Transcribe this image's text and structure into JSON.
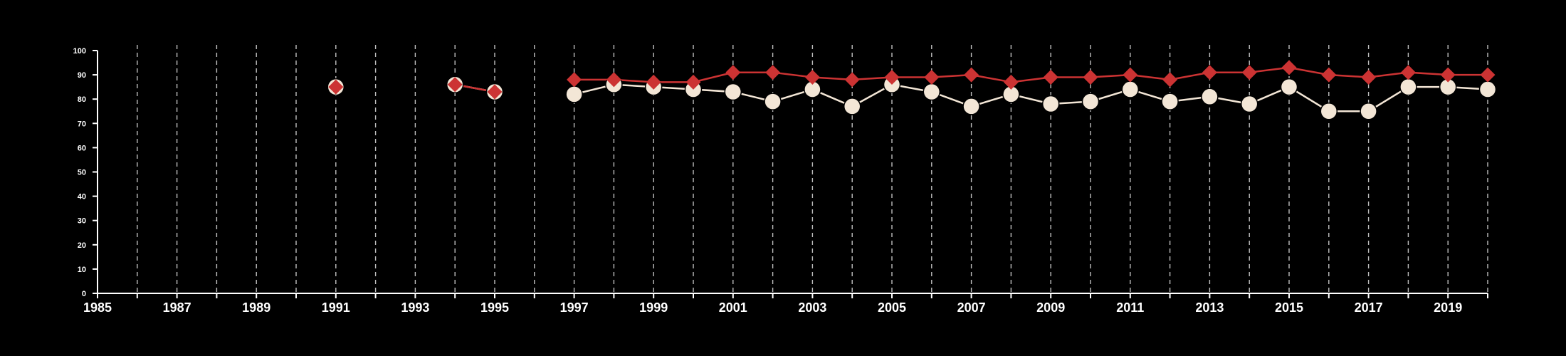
{
  "chart_data": {
    "type": "line",
    "title": "",
    "xlabel": "",
    "ylabel": "",
    "xlim": [
      1985,
      2020
    ],
    "ylim": [
      0,
      100
    ],
    "grid": "vertical dashed lines at every year",
    "background_color": "#000000",
    "axis_color": "#ffffff",
    "grid_color": "#bfbfbf",
    "x_ticks": [
      1985,
      1987,
      1989,
      1991,
      1993,
      1995,
      1997,
      1999,
      2001,
      2003,
      2005,
      2007,
      2009,
      2011,
      2013,
      2015,
      2017,
      2019
    ],
    "y_ticks": [
      0,
      10,
      20,
      30,
      40,
      50,
      60,
      70,
      80,
      90,
      100
    ],
    "series": [
      {
        "color": "#f3e6d6",
        "marker": "circle",
        "points": [
          {
            "x": 1991,
            "y": 85
          },
          {
            "x": 1994,
            "y": 86
          },
          {
            "x": 1995,
            "y": 83
          },
          {
            "x": 1997,
            "y": 82
          },
          {
            "x": 1998,
            "y": 86
          },
          {
            "x": 1999,
            "y": 85
          },
          {
            "x": 2000,
            "y": 84
          },
          {
            "x": 2001,
            "y": 83
          },
          {
            "x": 2002,
            "y": 79
          },
          {
            "x": 2003,
            "y": 84
          },
          {
            "x": 2004,
            "y": 77
          },
          {
            "x": 2005,
            "y": 86
          },
          {
            "x": 2006,
            "y": 83
          },
          {
            "x": 2007,
            "y": 77
          },
          {
            "x": 2008,
            "y": 82
          },
          {
            "x": 2009,
            "y": 78
          },
          {
            "x": 2010,
            "y": 79
          },
          {
            "x": 2011,
            "y": 84
          },
          {
            "x": 2012,
            "y": 79
          },
          {
            "x": 2013,
            "y": 81
          },
          {
            "x": 2014,
            "y": 78
          },
          {
            "x": 2015,
            "y": 85
          },
          {
            "x": 2016,
            "y": 75
          },
          {
            "x": 2017,
            "y": 75
          },
          {
            "x": 2018,
            "y": 85
          },
          {
            "x": 2019,
            "y": 85
          },
          {
            "x": 2020,
            "y": 84
          }
        ]
      },
      {
        "color": "#cc3333",
        "marker": "diamond",
        "points": [
          {
            "x": 1991,
            "y": 85
          },
          {
            "x": 1994,
            "y": 86
          },
          {
            "x": 1995,
            "y": 83
          },
          {
            "x": 1997,
            "y": 88
          },
          {
            "x": 1998,
            "y": 88
          },
          {
            "x": 1999,
            "y": 87
          },
          {
            "x": 2000,
            "y": 87
          },
          {
            "x": 2001,
            "y": 91
          },
          {
            "x": 2002,
            "y": 91
          },
          {
            "x": 2003,
            "y": 89
          },
          {
            "x": 2004,
            "y": 88
          },
          {
            "x": 2005,
            "y": 89
          },
          {
            "x": 2006,
            "y": 89
          },
          {
            "x": 2007,
            "y": 90
          },
          {
            "x": 2008,
            "y": 87
          },
          {
            "x": 2009,
            "y": 89
          },
          {
            "x": 2010,
            "y": 89
          },
          {
            "x": 2011,
            "y": 90
          },
          {
            "x": 2012,
            "y": 88
          },
          {
            "x": 2013,
            "y": 91
          },
          {
            "x": 2014,
            "y": 91
          },
          {
            "x": 2015,
            "y": 93
          },
          {
            "x": 2016,
            "y": 90
          },
          {
            "x": 2017,
            "y": 89
          },
          {
            "x": 2018,
            "y": 91
          },
          {
            "x": 2019,
            "y": 90
          },
          {
            "x": 2020,
            "y": 90
          }
        ]
      }
    ]
  }
}
